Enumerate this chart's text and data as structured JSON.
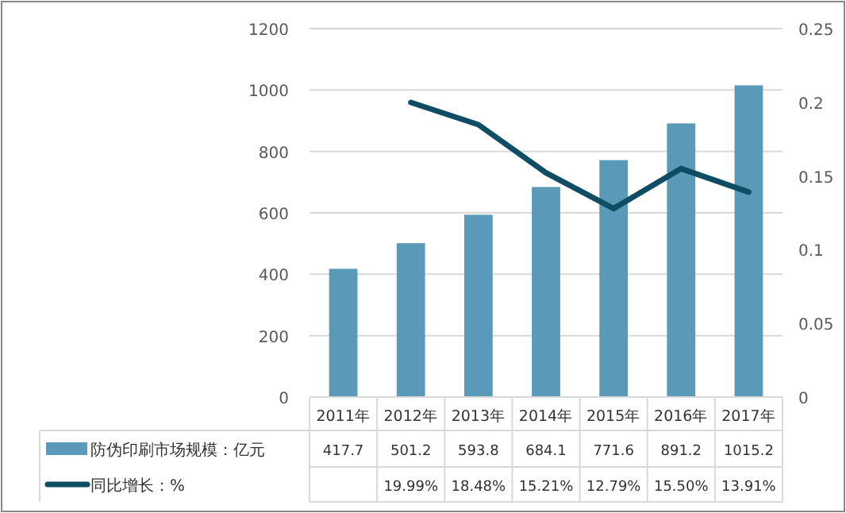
{
  "chart_data": {
    "type": "bar",
    "categories": [
      "2011年",
      "2012年",
      "2013年",
      "2014年",
      "2015年",
      "2016年",
      "2017年"
    ],
    "series": [
      {
        "name": "防伪印刷市场规模：亿元",
        "color": "#5a9ab8",
        "values": [
          417.7,
          501.2,
          593.8,
          684.1,
          771.6,
          891.2,
          1015.2
        ],
        "value_labels": [
          "417.7",
          "501.2",
          "593.8",
          "684.1",
          "771.6",
          "891.2",
          "1015.2"
        ]
      },
      {
        "name": "同比增长：%",
        "type": "line",
        "axis": "y2",
        "color": "#0e4d64",
        "values": [
          null,
          0.1999,
          0.1848,
          0.1521,
          0.1279,
          0.155,
          0.1391
        ],
        "value_labels": [
          null,
          "19.99%",
          "18.48%",
          "15.21%",
          "12.79%",
          "15.50%",
          "13.91%"
        ]
      }
    ],
    "ylim": [
      0,
      1200
    ],
    "yticks": [
      0,
      200,
      400,
      600,
      800,
      1000,
      1200
    ],
    "y2lim": [
      0,
      0.25
    ],
    "y2ticks": [
      0,
      0.05,
      0.1,
      0.15,
      0.2,
      0.25
    ],
    "grid": "y",
    "legend": "bottom"
  }
}
